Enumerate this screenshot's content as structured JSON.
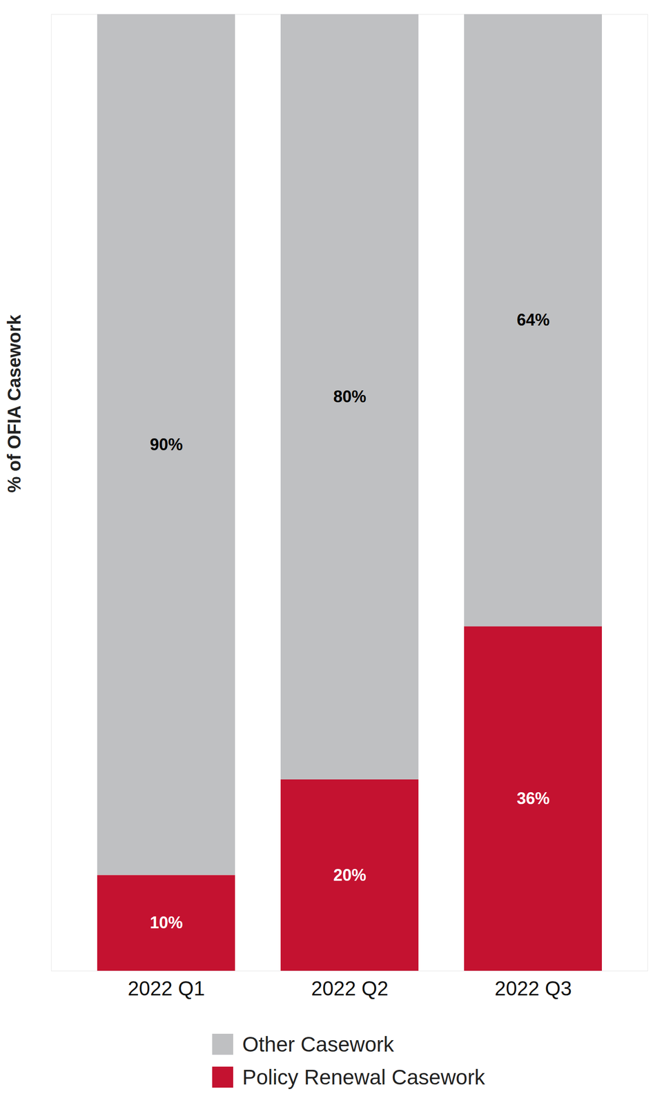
{
  "chart_data": {
    "type": "bar",
    "stacked": true,
    "data_labels": true,
    "tick_labels": "x",
    "ylabel": "% of OFIA Casework",
    "categories": [
      "2022 Q1",
      "2022 Q2",
      "2022 Q3"
    ],
    "series": [
      {
        "name": "Other Casework",
        "color": "#bfc0c2",
        "values": [
          90,
          80,
          64
        ],
        "value_labels": [
          "90%",
          "80%",
          "64%"
        ]
      },
      {
        "name": "Policy Renewal Casework",
        "color": "#c41230",
        "values": [
          10,
          20,
          36
        ],
        "value_labels": [
          "10%",
          "20%",
          "36%"
        ]
      }
    ],
    "ylim": [
      0,
      100
    ],
    "yticks": [],
    "legend": "bottom"
  }
}
